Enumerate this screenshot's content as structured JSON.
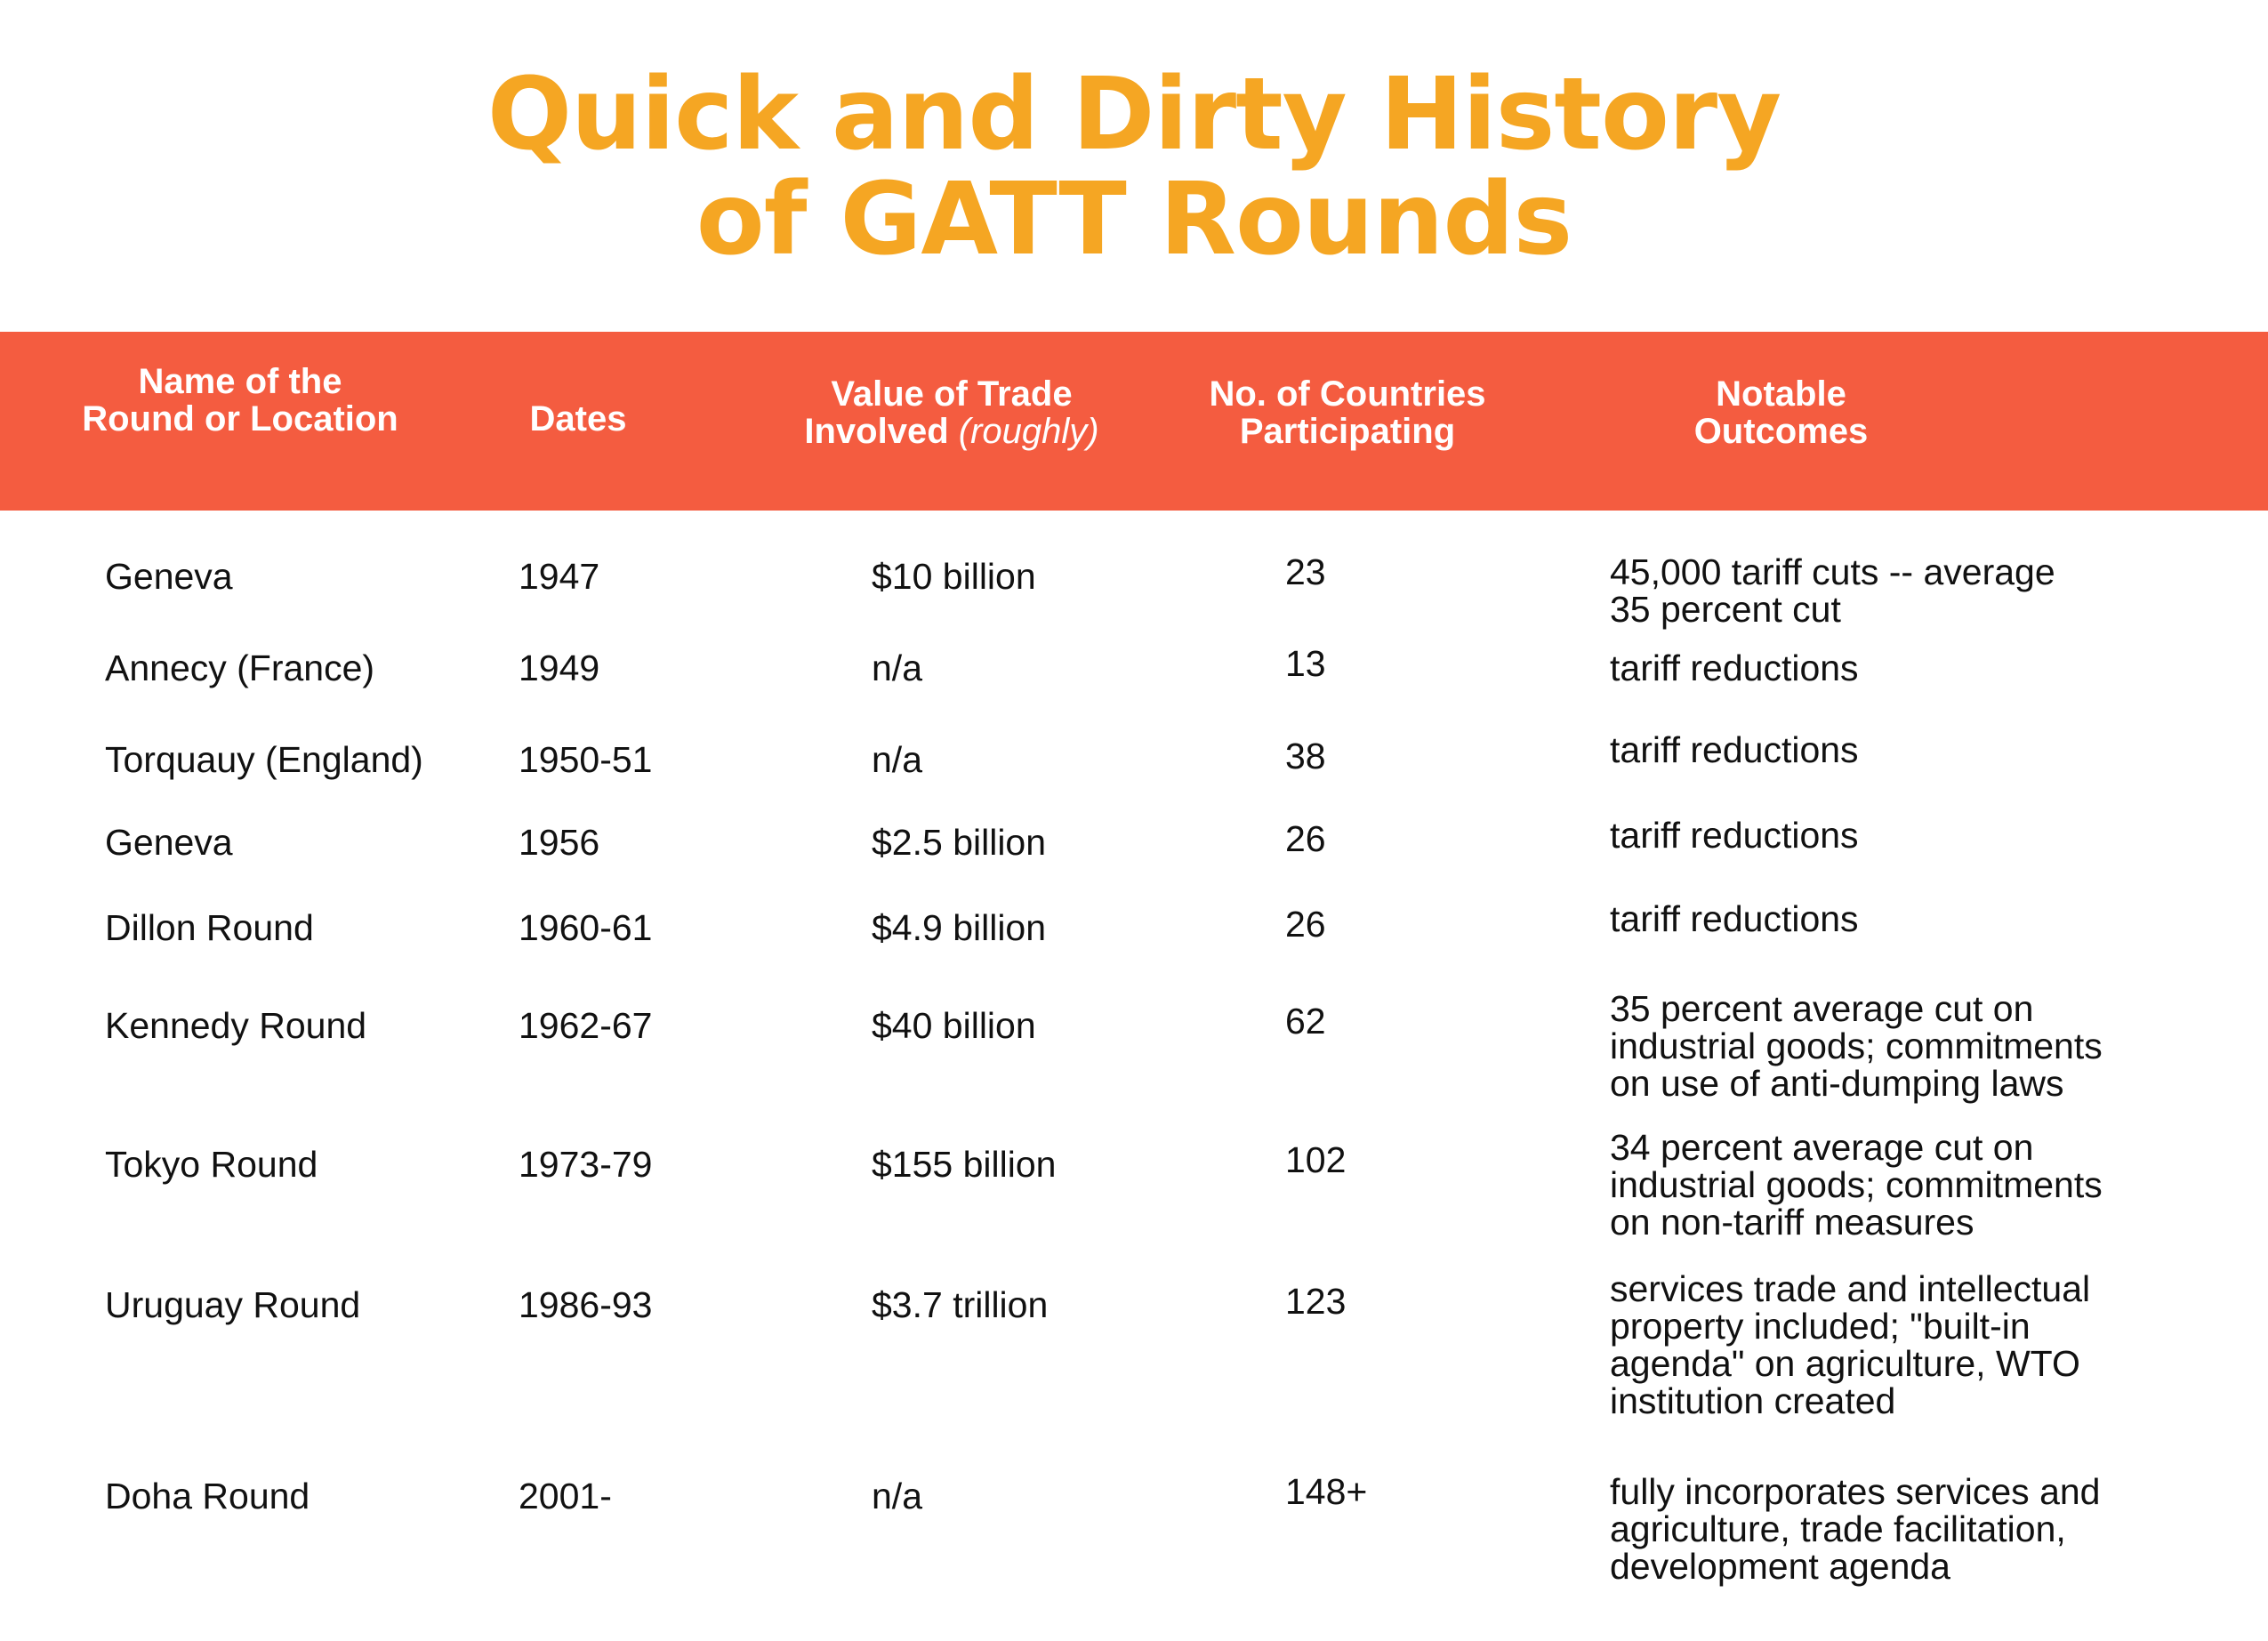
{
  "title": {
    "line1": "Quick and Dirty History",
    "line2": "of GATT Rounds"
  },
  "colors": {
    "title": "#f5a623",
    "header_band": "#f45c40",
    "header_text": "#ffffff",
    "body_text": "#111111"
  },
  "headers": {
    "name": {
      "line1": "Name of the",
      "line2": "Round or Location"
    },
    "dates": {
      "line1": "Dates"
    },
    "value": {
      "line1": "Value of Trade",
      "line2_main": "Involved",
      "line2_note": "(roughly)"
    },
    "countries": {
      "line1": "No. of Countries",
      "line2": "Participating"
    },
    "outcomes": {
      "line1": "Notable",
      "line2": "Outcomes"
    }
  },
  "rows": [
    {
      "name": "Geneva",
      "dates": "1947",
      "value": "$10 billion",
      "countries": "23",
      "outcome": [
        "45,000 tariff cuts -- average",
        "35 percent cut"
      ]
    },
    {
      "name": "Annecy (France)",
      "dates": "1949",
      "value": "n/a",
      "countries": "13",
      "outcome": [
        "tariff reductions"
      ]
    },
    {
      "name": "Torquauy (England)",
      "dates": "1950-51",
      "value": "n/a",
      "countries": "38",
      "outcome": [
        "tariff reductions"
      ]
    },
    {
      "name": "Geneva",
      "dates": "1956",
      "value": "$2.5 billion",
      "countries": "26",
      "outcome": [
        "tariff reductions"
      ]
    },
    {
      "name": "Dillon Round",
      "dates": "1960-61",
      "value": "$4.9 billion",
      "countries": "26",
      "outcome": [
        "tariff reductions"
      ]
    },
    {
      "name": "Kennedy Round",
      "dates": "1962-67",
      "value": "$40 billion",
      "countries": "62",
      "outcome": [
        "35 percent average cut on",
        "industrial goods; commitments",
        "on use of anti-dumping laws"
      ]
    },
    {
      "name": "Tokyo Round",
      "dates": "1973-79",
      "value": "$155 billion",
      "countries": "102",
      "outcome": [
        "34 percent average cut on",
        "industrial goods; commitments",
        "on non-tariff measures"
      ]
    },
    {
      "name": "Uruguay Round",
      "dates": "1986-93",
      "value": "$3.7 trillion",
      "countries": "123",
      "outcome": [
        "services trade and intellectual",
        "property included; \"built-in",
        "agenda\" on agriculture, WTO",
        "institution created"
      ]
    },
    {
      "name": "Doha Round",
      "dates": "2001-",
      "value": "n/a",
      "countries": "148+",
      "outcome": [
        "fully incorporates services and",
        "agriculture, trade facilitation,",
        "development agenda"
      ]
    }
  ]
}
